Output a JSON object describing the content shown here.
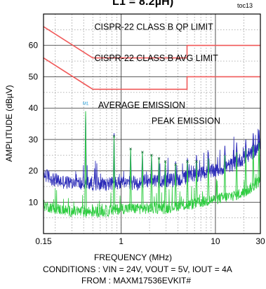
{
  "header": {
    "title": "L1 = 8.2µH)",
    "tag": "toc13"
  },
  "footer": {
    "conditions": "CONDITIONS : VIN = 24V, VOUT = 5V, IOUT = 4A",
    "source": "FROM :  MAXM17536EVKIT#"
  },
  "chart_data": {
    "type": "line",
    "title": "L1 = 8.2µH)",
    "xlabel": "FREQUENCY (MHz)",
    "ylabel": "AMPLITUDE (dBµV)",
    "xscale": "log",
    "xlim": [
      0.15,
      30
    ],
    "ylim": [
      0,
      70
    ],
    "x_ticks": [
      0.15,
      1,
      10,
      30
    ],
    "x_tick_labels": [
      "0.15",
      "1",
      "10",
      "30"
    ],
    "y_ticks": [
      10,
      20,
      30,
      40,
      50,
      60
    ],
    "y_tick_labels": [
      "10",
      "20",
      "30",
      "40",
      "50",
      "60"
    ],
    "grid": true,
    "colors": {
      "limit": "#f05a5a",
      "peak": "#2b2bb8",
      "average": "#2ecc40",
      "marker": "#1c9ad6",
      "grid": "#888888",
      "frame": "#000000"
    },
    "limits": [
      {
        "name": "CISPR-22 CLASS B QP LIMIT",
        "x": [
          0.15,
          0.5,
          0.5,
          5,
          5,
          30
        ],
        "y": [
          66,
          56,
          56,
          56,
          60,
          60
        ]
      },
      {
        "name": "CISPR-22 CLASS B AVG LIMIT",
        "x": [
          0.15,
          0.5,
          0.5,
          5,
          5,
          30
        ],
        "y": [
          56,
          46,
          46,
          46,
          50,
          50
        ]
      }
    ],
    "peak_emission": {
      "name": "PEAK EMISSION",
      "x": [
        0.15,
        0.2,
        0.3,
        0.4,
        0.5,
        0.7,
        1,
        1.5,
        2,
        3,
        4,
        5,
        7,
        10,
        15,
        20,
        25,
        30
      ],
      "y": [
        19,
        17,
        16,
        16,
        16,
        16,
        16,
        16,
        17,
        17,
        17,
        18,
        19,
        20,
        22,
        24,
        26,
        28
      ],
      "spikes": [
        {
          "x": 0.42,
          "y": 39
        },
        {
          "x": 0.84,
          "y": 32
        },
        {
          "x": 1.26,
          "y": 27
        },
        {
          "x": 1.68,
          "y": 26
        },
        {
          "x": 2.1,
          "y": 25
        },
        {
          "x": 2.52,
          "y": 24
        },
        {
          "x": 2.94,
          "y": 23
        },
        {
          "x": 3.78,
          "y": 23
        },
        {
          "x": 5.04,
          "y": 24
        },
        {
          "x": 6.3,
          "y": 25
        },
        {
          "x": 8.4,
          "y": 26
        },
        {
          "x": 12.6,
          "y": 28
        },
        {
          "x": 16.8,
          "y": 29
        },
        {
          "x": 21,
          "y": 30
        },
        {
          "x": 25.2,
          "y": 32
        },
        {
          "x": 29,
          "y": 33
        }
      ]
    },
    "average_emission": {
      "name": "AVERAGE EMISSION",
      "x": [
        0.15,
        0.2,
        0.3,
        0.4,
        0.5,
        0.7,
        1,
        1.5,
        2,
        3,
        4,
        5,
        7,
        10,
        15,
        20,
        25,
        30
      ],
      "y": [
        9,
        8,
        7,
        7,
        7,
        7,
        8,
        8,
        8,
        8,
        9,
        9,
        10,
        11,
        12,
        13,
        15,
        17
      ],
      "spikes": [
        {
          "x": 0.42,
          "y": 39
        },
        {
          "x": 0.84,
          "y": 31
        },
        {
          "x": 1.26,
          "y": 27
        },
        {
          "x": 1.68,
          "y": 26
        },
        {
          "x": 2.1,
          "y": 25
        },
        {
          "x": 2.52,
          "y": 24
        },
        {
          "x": 2.94,
          "y": 23
        },
        {
          "x": 3.78,
          "y": 22
        },
        {
          "x": 5.04,
          "y": 23
        },
        {
          "x": 6.3,
          "y": 23
        },
        {
          "x": 8.4,
          "y": 24
        },
        {
          "x": 12.6,
          "y": 25
        },
        {
          "x": 16.8,
          "y": 26
        },
        {
          "x": 21,
          "y": 27
        },
        {
          "x": 25.2,
          "y": 28
        },
        {
          "x": 29,
          "y": 29
        }
      ]
    },
    "annotations": [
      {
        "text": "CISPR-22 CLASS B QP LIMIT",
        "x": 0.52,
        "y": 65
      },
      {
        "text": "CISPR-22 CLASS B AVG LIMIT",
        "x": 0.52,
        "y": 55
      },
      {
        "text": "AVERAGE EMISSION",
        "x": 0.57,
        "y": 40
      },
      {
        "text": "PEAK EMISSION",
        "x": 2.1,
        "y": 35
      }
    ],
    "markers": [
      {
        "label": "M1",
        "x": 0.42,
        "y": 41
      }
    ]
  }
}
